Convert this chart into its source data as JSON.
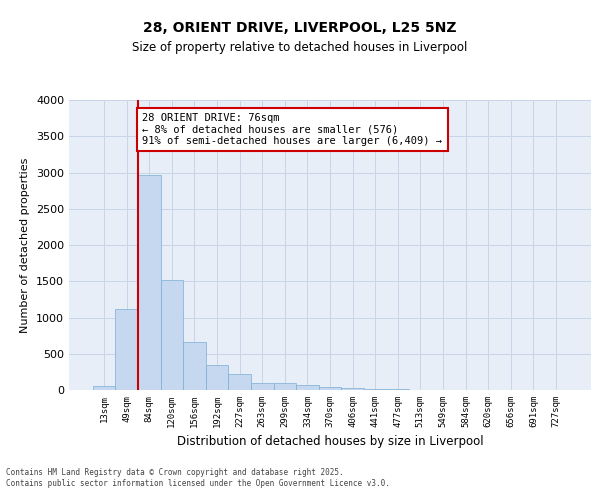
{
  "title_line1": "28, ORIENT DRIVE, LIVERPOOL, L25 5NZ",
  "title_line2": "Size of property relative to detached houses in Liverpool",
  "xlabel": "Distribution of detached houses by size in Liverpool",
  "ylabel": "Number of detached properties",
  "bar_labels": [
    "13sqm",
    "49sqm",
    "84sqm",
    "120sqm",
    "156sqm",
    "192sqm",
    "227sqm",
    "263sqm",
    "299sqm",
    "334sqm",
    "370sqm",
    "406sqm",
    "441sqm",
    "477sqm",
    "513sqm",
    "549sqm",
    "584sqm",
    "620sqm",
    "656sqm",
    "691sqm",
    "727sqm"
  ],
  "bar_values": [
    50,
    1120,
    2970,
    1520,
    660,
    340,
    215,
    95,
    90,
    75,
    40,
    25,
    15,
    8,
    3,
    2,
    1,
    1,
    0,
    0,
    0
  ],
  "bar_color": "#c5d8f0",
  "bar_edge_color": "#7aadd4",
  "grid_color": "#c8d4e8",
  "bg_color": "#e8eef8",
  "vline_color": "#cc0000",
  "vline_x_index": 1.5,
  "annotation_text": "28 ORIENT DRIVE: 76sqm\n← 8% of detached houses are smaller (576)\n91% of semi-detached houses are larger (6,409) →",
  "annotation_box_color": "#cc0000",
  "ylim": [
    0,
    4000
  ],
  "yticks": [
    0,
    500,
    1000,
    1500,
    2000,
    2500,
    3000,
    3500,
    4000
  ],
  "footer_text": "Contains HM Land Registry data © Crown copyright and database right 2025.\nContains public sector information licensed under the Open Government Licence v3.0.",
  "fig_width": 6.0,
  "fig_height": 5.0,
  "title_fontsize": 10,
  "subtitle_fontsize": 8.5,
  "ylabel_fontsize": 8,
  "xlabel_fontsize": 8.5,
  "ytick_fontsize": 8,
  "xtick_fontsize": 6.5,
  "annot_fontsize": 7.5,
  "footer_fontsize": 5.5
}
